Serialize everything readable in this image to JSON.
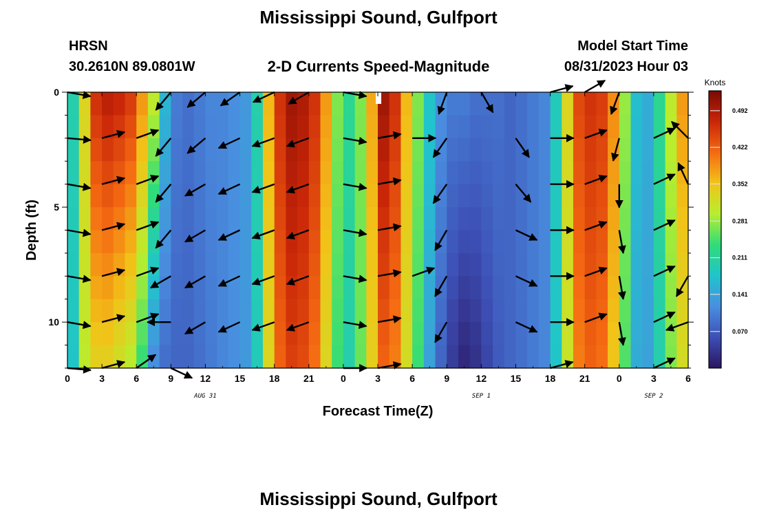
{
  "title": "Mississippi Sound, Gulfport",
  "station_code": "HRSN",
  "coordinates": "30.2610N  89.0801W",
  "chart_title": "2-D Currents Speed-Magnitude",
  "model_start_label": "Model Start Time",
  "model_start_value": "08/31/2023 Hour 03",
  "footer_title": "Mississippi Sound, Gulfport",
  "colors": {
    "ramp": [
      "#2a1660",
      "#3d4fb5",
      "#4a8ee0",
      "#20c4cc",
      "#2fdc7a",
      "#b8ee2e",
      "#f2c318",
      "#f56a12",
      "#c92608",
      "#7a0a03"
    ],
    "arrow": "#000000",
    "missing_cell": "#ffffff"
  },
  "chart_data": {
    "type": "heatmap",
    "xlabel": "Forecast Time(Z)",
    "ylabel": "Depth (ft)",
    "x_ticks": [
      "0",
      "3",
      "6",
      "9",
      "12",
      "15",
      "18",
      "21",
      "0",
      "3",
      "6",
      "9",
      "12",
      "15",
      "18",
      "21",
      "0",
      "3",
      "6"
    ],
    "x_range_hours": [
      0,
      54
    ],
    "date_labels": [
      {
        "text": "AUG 31",
        "hour": 12
      },
      {
        "text": "SEP 1",
        "hour": 36
      },
      {
        "text": "SEP 2",
        "hour": 51
      }
    ],
    "y_ticks": [
      0,
      5,
      10
    ],
    "y_range_ft": [
      0,
      12
    ],
    "y_inverted": true,
    "colorbar": {
      "unit_label": "Knots",
      "tick_labels": [
        "0.492",
        "0.422",
        "0.352",
        "0.281",
        "0.211",
        "0.141",
        "0.070"
      ],
      "tick_values": [
        0.492,
        0.422,
        0.352,
        0.281,
        0.211,
        0.141,
        0.07
      ],
      "range": [
        0,
        0.53
      ]
    },
    "time_hours": [
      0,
      1,
      2,
      3,
      4,
      5,
      6,
      7,
      8,
      9,
      10,
      11,
      12,
      13,
      14,
      15,
      16,
      17,
      18,
      19,
      20,
      21,
      22,
      23,
      24,
      25,
      26,
      27,
      28,
      29,
      30,
      31,
      32,
      33,
      34,
      35,
      36,
      37,
      38,
      39,
      40,
      41,
      42,
      43,
      44,
      45,
      46,
      47,
      48,
      49,
      50,
      51,
      52,
      53
    ],
    "speed_surface_knots": [
      0.2,
      0.33,
      0.46,
      0.48,
      0.47,
      0.45,
      0.38,
      0.3,
      0.16,
      0.1,
      0.09,
      0.1,
      0.11,
      0.11,
      0.12,
      0.13,
      0.2,
      0.36,
      0.46,
      0.5,
      0.49,
      0.46,
      0.38,
      0.27,
      0.22,
      0.27,
      0.37,
      0.5,
      0.46,
      0.36,
      0.27,
      0.18,
      0.12,
      0.1,
      0.1,
      0.09,
      0.09,
      0.09,
      0.08,
      0.09,
      0.1,
      0.11,
      0.19,
      0.33,
      0.44,
      0.46,
      0.45,
      0.39,
      0.28,
      0.17,
      0.15,
      0.22,
      0.3,
      0.38
    ],
    "speed_bottom_knots": [
      0.18,
      0.3,
      0.34,
      0.34,
      0.32,
      0.3,
      0.24,
      0.12,
      0.09,
      0.08,
      0.08,
      0.09,
      0.1,
      0.11,
      0.12,
      0.13,
      0.19,
      0.33,
      0.42,
      0.45,
      0.44,
      0.41,
      0.33,
      0.24,
      0.2,
      0.26,
      0.34,
      0.42,
      0.4,
      0.32,
      0.24,
      0.14,
      0.08,
      0.04,
      0.02,
      0.03,
      0.05,
      0.07,
      0.08,
      0.09,
      0.1,
      0.11,
      0.18,
      0.31,
      0.4,
      0.42,
      0.41,
      0.35,
      0.25,
      0.15,
      0.14,
      0.2,
      0.27,
      0.32
    ],
    "arrows": [
      {
        "hour": 0,
        "direction_deg": 100,
        "depths_ft": [
          0,
          4,
          6,
          8,
          10
        ]
      },
      {
        "hour": 0,
        "direction_deg": 95,
        "depths_ft": [
          2,
          12
        ]
      },
      {
        "hour": 3,
        "direction_deg": 75,
        "depths_ft": [
          2,
          4,
          6,
          8,
          10,
          12
        ]
      },
      {
        "hour": 6,
        "direction_deg": 70,
        "depths_ft": [
          2,
          4,
          6,
          8,
          10
        ]
      },
      {
        "hour": 6,
        "direction_deg": 55,
        "depths_ft": [
          12
        ]
      },
      {
        "hour": 9,
        "direction_deg": 220,
        "depths_ft": [
          0,
          2,
          4,
          6
        ]
      },
      {
        "hour": 9,
        "direction_deg": 240,
        "depths_ft": [
          8
        ]
      },
      {
        "hour": 9,
        "direction_deg": 270,
        "depths_ft": [
          10
        ]
      },
      {
        "hour": 9,
        "direction_deg": 115,
        "depths_ft": [
          12
        ]
      },
      {
        "hour": 12,
        "direction_deg": 230,
        "depths_ft": [
          0,
          2
        ]
      },
      {
        "hour": 12,
        "direction_deg": 240,
        "depths_ft": [
          4,
          6,
          8,
          10
        ]
      },
      {
        "hour": 15,
        "direction_deg": 235,
        "depths_ft": [
          0
        ]
      },
      {
        "hour": 15,
        "direction_deg": 245,
        "depths_ft": [
          2,
          4,
          6,
          8,
          10
        ]
      },
      {
        "hour": 18,
        "direction_deg": 245,
        "depths_ft": [
          0
        ]
      },
      {
        "hour": 18,
        "direction_deg": 250,
        "depths_ft": [
          2,
          4,
          6,
          8,
          10
        ]
      },
      {
        "hour": 21,
        "direction_deg": 240,
        "depths_ft": [
          0
        ]
      },
      {
        "hour": 21,
        "direction_deg": 250,
        "depths_ft": [
          2,
          4,
          6,
          8,
          10
        ]
      },
      {
        "hour": 24,
        "direction_deg": 100,
        "depths_ft": [
          0,
          2,
          4,
          6,
          8,
          10
        ]
      },
      {
        "hour": 24,
        "direction_deg": 90,
        "depths_ft": [
          12
        ]
      },
      {
        "hour": 27,
        "direction_deg": 80,
        "depths_ft": [
          2,
          4,
          6,
          8,
          10,
          12
        ]
      },
      {
        "hour": 30,
        "direction_deg": 90,
        "depths_ft": [
          2
        ]
      },
      {
        "hour": 30,
        "direction_deg": 70,
        "depths_ft": [
          8
        ]
      },
      {
        "hour": 33,
        "direction_deg": 200,
        "depths_ft": [
          0
        ]
      },
      {
        "hour": 33,
        "direction_deg": 215,
        "depths_ft": [
          2,
          4
        ]
      },
      {
        "hour": 33,
        "direction_deg": 210,
        "depths_ft": [
          6,
          8,
          10
        ]
      },
      {
        "hour": 36,
        "direction_deg": 150,
        "depths_ft": [
          0
        ]
      },
      {
        "hour": 39,
        "direction_deg": 145,
        "depths_ft": [
          2
        ]
      },
      {
        "hour": 39,
        "direction_deg": 140,
        "depths_ft": [
          4
        ]
      },
      {
        "hour": 39,
        "direction_deg": 115,
        "depths_ft": [
          6,
          8,
          10
        ]
      },
      {
        "hour": 42,
        "direction_deg": 75,
        "depths_ft": [
          0
        ]
      },
      {
        "hour": 42,
        "direction_deg": 90,
        "depths_ft": [
          2,
          4,
          6,
          8,
          10
        ]
      },
      {
        "hour": 42,
        "direction_deg": 75,
        "depths_ft": [
          12
        ]
      },
      {
        "hour": 45,
        "direction_deg": 60,
        "depths_ft": [
          0
        ]
      },
      {
        "hour": 45,
        "direction_deg": 70,
        "depths_ft": [
          2,
          4,
          6,
          8,
          10
        ]
      },
      {
        "hour": 48,
        "direction_deg": 200,
        "depths_ft": [
          0
        ]
      },
      {
        "hour": 48,
        "direction_deg": 195,
        "depths_ft": [
          2
        ]
      },
      {
        "hour": 48,
        "direction_deg": 180,
        "depths_ft": [
          4
        ]
      },
      {
        "hour": 48,
        "direction_deg": 170,
        "depths_ft": [
          6,
          8,
          10
        ]
      },
      {
        "hour": 51,
        "direction_deg": 65,
        "depths_ft": [
          2,
          4,
          6,
          8,
          10,
          12
        ]
      },
      {
        "hour": 54,
        "direction_deg": 315,
        "depths_ft": [
          2
        ]
      },
      {
        "hour": 54,
        "direction_deg": 335,
        "depths_ft": [
          4
        ]
      },
      {
        "hour": 54,
        "direction_deg": 210,
        "depths_ft": [
          8
        ]
      },
      {
        "hour": 54,
        "direction_deg": 250,
        "depths_ft": [
          10
        ]
      }
    ]
  }
}
